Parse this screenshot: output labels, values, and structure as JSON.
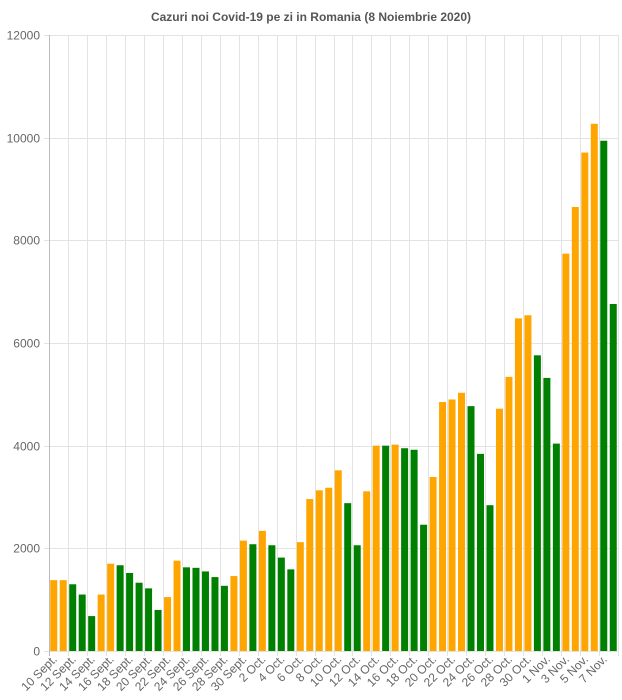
{
  "chart_data": {
    "type": "bar",
    "title": "Cazuri noi Covid-19 pe zi in Romania (8 Noiembrie 2020)",
    "xlabel": "",
    "ylabel": "",
    "ylim": [
      0,
      12000
    ],
    "yticks": [
      0,
      2000,
      4000,
      6000,
      8000,
      10000,
      12000
    ],
    "grid": true,
    "colors": {
      "orange": "#ffa500",
      "green": "#008000"
    },
    "categories": [
      "10 Sept.",
      "11 Sept.",
      "12 Sept.",
      "13 Sept.",
      "14 Sept.",
      "15 Sept.",
      "16 Sept.",
      "17 Sept.",
      "18 Sept.",
      "19 Sept.",
      "20 Sept.",
      "21 Sept.",
      "22 Sept.",
      "23 Sept.",
      "24 Sept.",
      "25 Sept.",
      "26 Sept.",
      "27 Sept.",
      "28 Sept.",
      "29 Sept.",
      "30 Sept.",
      "1 Oct.",
      "2 Oct.",
      "3 Oct.",
      "4 Oct.",
      "5 Oct.",
      "6 Oct.",
      "7 Oct.",
      "8 Oct.",
      "9 Oct.",
      "10 Oct.",
      "11 Oct.",
      "12 Oct.",
      "13 Oct.",
      "14 Oct.",
      "15 Oct.",
      "16 Oct.",
      "17 Oct.",
      "18 Oct.",
      "19 Oct.",
      "20 Oct.",
      "21 Oct.",
      "22 Oct.",
      "23 Oct.",
      "24 Oct.",
      "25 Oct.",
      "26 Oct.",
      "27 Oct.",
      "28 Oct.",
      "29 Oct.",
      "30 Oct.",
      "31 Oct.",
      "1 Nov.",
      "2 Nov.",
      "3 Nov.",
      "4 Nov.",
      "5 Nov.",
      "6 Nov.",
      "7 Nov.",
      "8 Nov."
    ],
    "tick_labels": [
      "10 Sept.",
      "12 Sept.",
      "14 Sept.",
      "16 Sept.",
      "18 Sept.",
      "20 Sept.",
      "22 Sept.",
      "24 Sept.",
      "26 Sept.",
      "28 Sept.",
      "30 Sept.",
      "2 Oct.",
      "4 Oct.",
      "6 Oct.",
      "8 Oct.",
      "10 Oct.",
      "12 Oct.",
      "14 Oct.",
      "16 Oct.",
      "18 Oct.",
      "20 Oct.",
      "22 Oct.",
      "24 Oct.",
      "26 Oct.",
      "28 Oct.",
      "30 Oct.",
      "1 Nov.",
      "3 Nov.",
      "5 Nov.",
      "7 Nov."
    ],
    "values": [
      1380,
      1380,
      1300,
      1100,
      680,
      1100,
      1700,
      1670,
      1520,
      1330,
      1220,
      800,
      1050,
      1760,
      1630,
      1620,
      1550,
      1440,
      1270,
      1460,
      2150,
      2080,
      2340,
      2060,
      1820,
      1590,
      2120,
      2960,
      3130,
      3180,
      3520,
      2880,
      2060,
      3110,
      4000,
      4000,
      4020,
      3950,
      3920,
      2460,
      3390,
      4850,
      4900,
      5030,
      4770,
      3840,
      2840,
      4720,
      5340,
      6480,
      6540,
      5760,
      5320,
      4040,
      7740,
      8650,
      9710,
      10270,
      9940,
      6760
    ],
    "bar_colors": [
      "orange",
      "orange",
      "green",
      "green",
      "green",
      "orange",
      "orange",
      "green",
      "green",
      "green",
      "green",
      "green",
      "orange",
      "orange",
      "green",
      "green",
      "green",
      "green",
      "green",
      "orange",
      "orange",
      "green",
      "orange",
      "green",
      "green",
      "green",
      "orange",
      "orange",
      "orange",
      "orange",
      "orange",
      "green",
      "green",
      "orange",
      "orange",
      "green",
      "orange",
      "green",
      "green",
      "green",
      "orange",
      "orange",
      "orange",
      "orange",
      "green",
      "green",
      "green",
      "orange",
      "orange",
      "orange",
      "orange",
      "green",
      "green",
      "green",
      "orange",
      "orange",
      "orange",
      "orange",
      "green",
      "green"
    ]
  }
}
